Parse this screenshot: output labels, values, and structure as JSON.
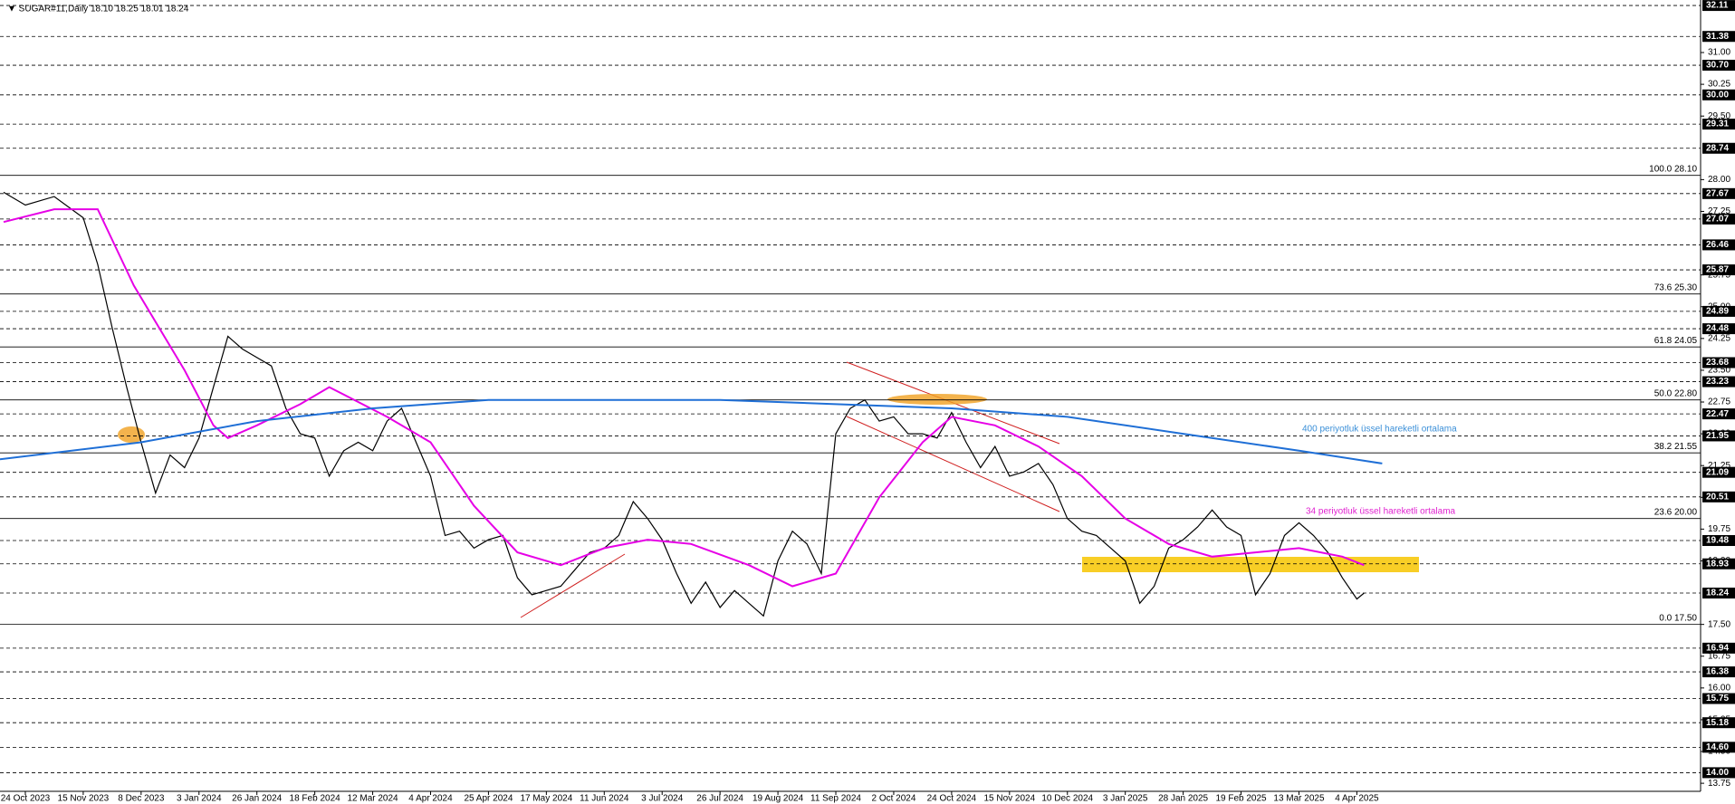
{
  "chart_data": {
    "type": "line",
    "title": "▼ SUGAR#11,Daily  18.10 18.25 18.01 18.24",
    "xlim": [
      -7,
      463
    ],
    "ylim": [
      13.56,
      32.24
    ],
    "xticks": [
      {
        "value": 0,
        "label": "24 Oct 2023"
      },
      {
        "value": 16,
        "label": "15 Nov 2023"
      },
      {
        "value": 32,
        "label": "8 Dec 2023"
      },
      {
        "value": 48,
        "label": "3 Jan 2024"
      },
      {
        "value": 64,
        "label": "26 Jan 2024"
      },
      {
        "value": 80,
        "label": "18 Feb 2024"
      },
      {
        "value": 96,
        "label": "12 Mar 2024"
      },
      {
        "value": 112,
        "label": "4 Apr 2024"
      },
      {
        "value": 128,
        "label": "25 Apr 2024"
      },
      {
        "value": 144,
        "label": "17 May 2024"
      },
      {
        "value": 160,
        "label": "11 Jun 2024"
      },
      {
        "value": 176,
        "label": "3 Jul 2024"
      },
      {
        "value": 192,
        "label": "26 Jul 2024"
      },
      {
        "value": 208,
        "label": "19 Aug 2024"
      },
      {
        "value": 224,
        "label": "11 Sep 2024"
      },
      {
        "value": 240,
        "label": "2 Oct 2024"
      },
      {
        "value": 256,
        "label": "24 Oct 2024"
      },
      {
        "value": 272,
        "label": "15 Nov 2024"
      },
      {
        "value": 288,
        "label": "10 Dec 2024"
      },
      {
        "value": 304,
        "label": "3 Jan 2025"
      },
      {
        "value": 320,
        "label": "28 Jan 2025"
      },
      {
        "value": 336,
        "label": "19 Feb 2025"
      },
      {
        "value": 352,
        "label": "13 Mar 2025"
      },
      {
        "value": 368,
        "label": "4 Apr 2025"
      }
    ],
    "yticks": [
      {
        "value": 31,
        "label": "31.00"
      },
      {
        "value": 30.25,
        "label": "30.25"
      },
      {
        "value": 29.5,
        "label": "29.50"
      },
      {
        "value": 28,
        "label": "28.00"
      },
      {
        "value": 27.25,
        "label": "27.25"
      },
      {
        "value": 25.75,
        "label": "25.75"
      },
      {
        "value": 25,
        "label": "25.00"
      },
      {
        "value": 24.25,
        "label": "24.25"
      },
      {
        "value": 23.5,
        "label": "23.50"
      },
      {
        "value": 22.75,
        "label": "22.75"
      },
      {
        "value": 22,
        "label": "22.00"
      },
      {
        "value": 21.25,
        "label": "21.25"
      },
      {
        "value": 20.5,
        "label": "20.50"
      },
      {
        "value": 19.75,
        "label": "19.75"
      },
      {
        "value": 19,
        "label": "19.00"
      },
      {
        "value": 17.5,
        "label": "17.50"
      },
      {
        "value": 16.75,
        "label": "16.75"
      },
      {
        "value": 16,
        "label": "16.00"
      },
      {
        "value": 15.25,
        "label": "15.25"
      },
      {
        "value": 14.5,
        "label": "14.50"
      },
      {
        "value": 13.75,
        "label": "13.75"
      }
    ],
    "levels": [
      {
        "value": 32.11,
        "label": "32.11"
      },
      {
        "value": 31.38,
        "label": "31.38"
      },
      {
        "value": 30.7,
        "label": "30.70"
      },
      {
        "value": 30,
        "label": "30.00"
      },
      {
        "value": 29.31,
        "label": "29.31"
      },
      {
        "value": 28.74,
        "label": "28.74"
      },
      {
        "value": 27.67,
        "label": "27.67"
      },
      {
        "value": 27.07,
        "label": "27.07"
      },
      {
        "value": 26.46,
        "label": "26.46"
      },
      {
        "value": 25.87,
        "label": "25.87"
      },
      {
        "value": 24.89,
        "label": "24.89"
      },
      {
        "value": 24.48,
        "label": "24.48"
      },
      {
        "value": 23.68,
        "label": "23.68"
      },
      {
        "value": 23.23,
        "label": "23.23"
      },
      {
        "value": 22.47,
        "label": "22.47"
      },
      {
        "value": 21.95,
        "label": "21.95"
      },
      {
        "value": 21.09,
        "label": "21.09"
      },
      {
        "value": 20.51,
        "label": "20.51"
      },
      {
        "value": 19.48,
        "label": "19.48"
      },
      {
        "value": 18.93,
        "label": "18.93"
      },
      {
        "value": 18.24,
        "label": "18.24"
      },
      {
        "value": 16.94,
        "label": "16.94"
      },
      {
        "value": 16.38,
        "label": "16.38"
      },
      {
        "value": 15.75,
        "label": "15.75"
      },
      {
        "value": 15.18,
        "label": "15.18"
      },
      {
        "value": 14.6,
        "label": "14.60"
      },
      {
        "value": 14,
        "label": "14.00"
      }
    ],
    "fib_levels": [
      {
        "value": 28.1,
        "label": "100.0 28.10"
      },
      {
        "value": 25.3,
        "label": "73.6 25.30"
      },
      {
        "value": 24.05,
        "label": "61.8 24.05"
      },
      {
        "value": 22.8,
        "label": "50.0 22.80"
      },
      {
        "value": 21.55,
        "label": "38.2 21.55"
      },
      {
        "value": 20,
        "label": "23.6 20.00"
      },
      {
        "value": 17.5,
        "label": "0.0 17.50"
      }
    ],
    "series": [
      {
        "color": "#000000",
        "x": [
          -6,
          0,
          8,
          16,
          20,
          24,
          28,
          32,
          36,
          40,
          44,
          48,
          52,
          56,
          60,
          64,
          68,
          72,
          76,
          80,
          84,
          88,
          92,
          96,
          100,
          104,
          108,
          112,
          116,
          120,
          124,
          128,
          132,
          136,
          140,
          144,
          148,
          152,
          156,
          160,
          164,
          168,
          172,
          176,
          180,
          184,
          188,
          192,
          196,
          200,
          204,
          208,
          212,
          216,
          220,
          224,
          228,
          232,
          236,
          240,
          244,
          248,
          252,
          256,
          260,
          264,
          268,
          272,
          276,
          280,
          284,
          288,
          292,
          296,
          300,
          304,
          308,
          312,
          316,
          320,
          324,
          328,
          332,
          336,
          340,
          344,
          348,
          352,
          356,
          360,
          364,
          368,
          370
        ],
        "values": [
          27.7,
          27.4,
          27.6,
          27.1,
          26.0,
          24.5,
          23.1,
          21.8,
          20.6,
          21.5,
          21.2,
          21.9,
          23.1,
          24.3,
          24.0,
          23.8,
          23.6,
          22.6,
          22.0,
          21.9,
          21.0,
          21.6,
          21.8,
          21.6,
          22.3,
          22.6,
          21.8,
          21.0,
          19.6,
          19.7,
          19.3,
          19.5,
          19.6,
          18.6,
          18.2,
          18.3,
          18.4,
          18.8,
          19.2,
          19.3,
          19.6,
          20.4,
          20.0,
          19.5,
          18.7,
          18.0,
          18.5,
          17.9,
          18.3,
          18.0,
          17.7,
          19.0,
          19.7,
          19.4,
          18.7,
          22.0,
          22.6,
          22.8,
          22.3,
          22.4,
          22.0,
          22.0,
          21.9,
          22.5,
          21.8,
          21.2,
          21.7,
          21.0,
          21.1,
          21.3,
          20.8,
          20.0,
          19.7,
          19.6,
          19.3,
          19.0,
          18.0,
          18.4,
          19.3,
          19.5,
          19.8,
          20.2,
          19.8,
          19.6,
          18.2,
          18.7,
          19.6,
          19.9,
          19.6,
          19.2,
          18.6,
          18.1,
          18.24
        ]
      },
      {
        "color": "#e600e6",
        "x": [
          -6,
          8,
          20,
          30,
          44,
          52,
          56,
          64,
          76,
          84,
          100,
          112,
          124,
          136,
          148,
          160,
          172,
          184,
          200,
          212,
          224,
          236,
          248,
          256,
          268,
          280,
          292,
          304,
          316,
          328,
          340,
          352,
          364,
          370
        ],
        "values": [
          27.0,
          27.3,
          27.3,
          25.5,
          23.5,
          22.2,
          21.9,
          22.2,
          22.7,
          23.1,
          22.4,
          21.8,
          20.3,
          19.2,
          18.9,
          19.3,
          19.5,
          19.4,
          18.9,
          18.4,
          18.7,
          20.5,
          21.8,
          22.4,
          22.2,
          21.7,
          21.0,
          20.0,
          19.4,
          19.1,
          19.2,
          19.3,
          19.1,
          18.9
        ]
      },
      {
        "color": "#1f6fd6",
        "x": [
          -7,
          32,
          64,
          96,
          128,
          192,
          224,
          256,
          288,
          320,
          352,
          375
        ],
        "values": [
          21.4,
          21.8,
          22.3,
          22.6,
          22.8,
          22.8,
          22.7,
          22.6,
          22.4,
          22.0,
          21.6,
          21.3
        ]
      }
    ],
    "annotations": [
      {
        "text": "400 periyotluk üssel hareketli ortalama",
        "color": "#3a8fd8"
      },
      {
        "text": "34 periyotluk üssel hareketli ortalama",
        "color": "#e020d0"
      }
    ]
  }
}
